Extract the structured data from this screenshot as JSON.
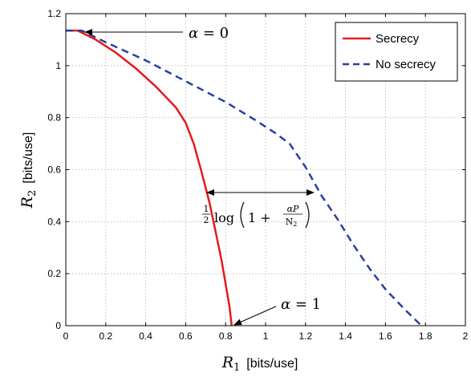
{
  "chart_data": {
    "type": "line",
    "xlabel": {
      "var": "R",
      "sub": "1",
      "unit": "[bits/use]"
    },
    "ylabel": {
      "var": "R",
      "sub": "2",
      "unit": "[bits/use]"
    },
    "xlim": [
      0,
      2
    ],
    "ylim": [
      0,
      1.2
    ],
    "xticks": [
      0,
      0.2,
      0.4,
      0.6,
      0.8,
      1,
      1.2,
      1.4,
      1.6,
      1.8,
      2
    ],
    "yticks": [
      0,
      0.2,
      0.4,
      0.6,
      0.8,
      1,
      1.2
    ],
    "xtick_labels": [
      "0",
      "0.2",
      "0.4",
      "0.6",
      "0.8",
      "1",
      "1.2",
      "1.4",
      "1.6",
      "1.8",
      "2"
    ],
    "ytick_labels": [
      "0",
      "0.2",
      "0.4",
      "0.6",
      "0.8",
      "1",
      "1.2"
    ],
    "grid": true,
    "legend": "top-right",
    "series": [
      {
        "name": "Secrecy",
        "color": "#e41a1c",
        "style": "solid",
        "points": [
          [
            0,
            1.135
          ],
          [
            0.06,
            1.135
          ],
          [
            0.15,
            1.1
          ],
          [
            0.25,
            1.05
          ],
          [
            0.35,
            0.99
          ],
          [
            0.45,
            0.92
          ],
          [
            0.55,
            0.84
          ],
          [
            0.6,
            0.78
          ],
          [
            0.64,
            0.7
          ],
          [
            0.68,
            0.59
          ],
          [
            0.72,
            0.47
          ],
          [
            0.75,
            0.36
          ],
          [
            0.78,
            0.25
          ],
          [
            0.8,
            0.16
          ],
          [
            0.82,
            0.07
          ],
          [
            0.83,
            0.0
          ]
        ]
      },
      {
        "name": "No secrecy",
        "color": "#2a3fa0",
        "style": "dashed",
        "points": [
          [
            0,
            1.135
          ],
          [
            0.08,
            1.135
          ],
          [
            0.2,
            1.09
          ],
          [
            0.4,
            1.02
          ],
          [
            0.6,
            0.94
          ],
          [
            0.8,
            0.86
          ],
          [
            0.95,
            0.79
          ],
          [
            1.05,
            0.74
          ],
          [
            1.12,
            0.7
          ],
          [
            1.2,
            0.61
          ],
          [
            1.28,
            0.5
          ],
          [
            1.36,
            0.41
          ],
          [
            1.44,
            0.31
          ],
          [
            1.52,
            0.22
          ],
          [
            1.6,
            0.14
          ],
          [
            1.7,
            0.06
          ],
          [
            1.78,
            0.0
          ]
        ]
      }
    ],
    "annotations": {
      "alpha0": {
        "lhs": "α",
        "rhs": " = 0",
        "point": [
          0.08,
          1.135
        ]
      },
      "alpha1": {
        "lhs": "α",
        "rhs": " = 1",
        "point": [
          0.83,
          0.0
        ]
      },
      "gap": {
        "y": 0.48,
        "x_from": 0.73,
        "x_to": 1.26,
        "half": "1",
        "half_den": "2",
        "log": "log",
        "one_plus": "1 +",
        "num": "αP",
        "den": "N",
        "den_sub": "2"
      }
    }
  }
}
